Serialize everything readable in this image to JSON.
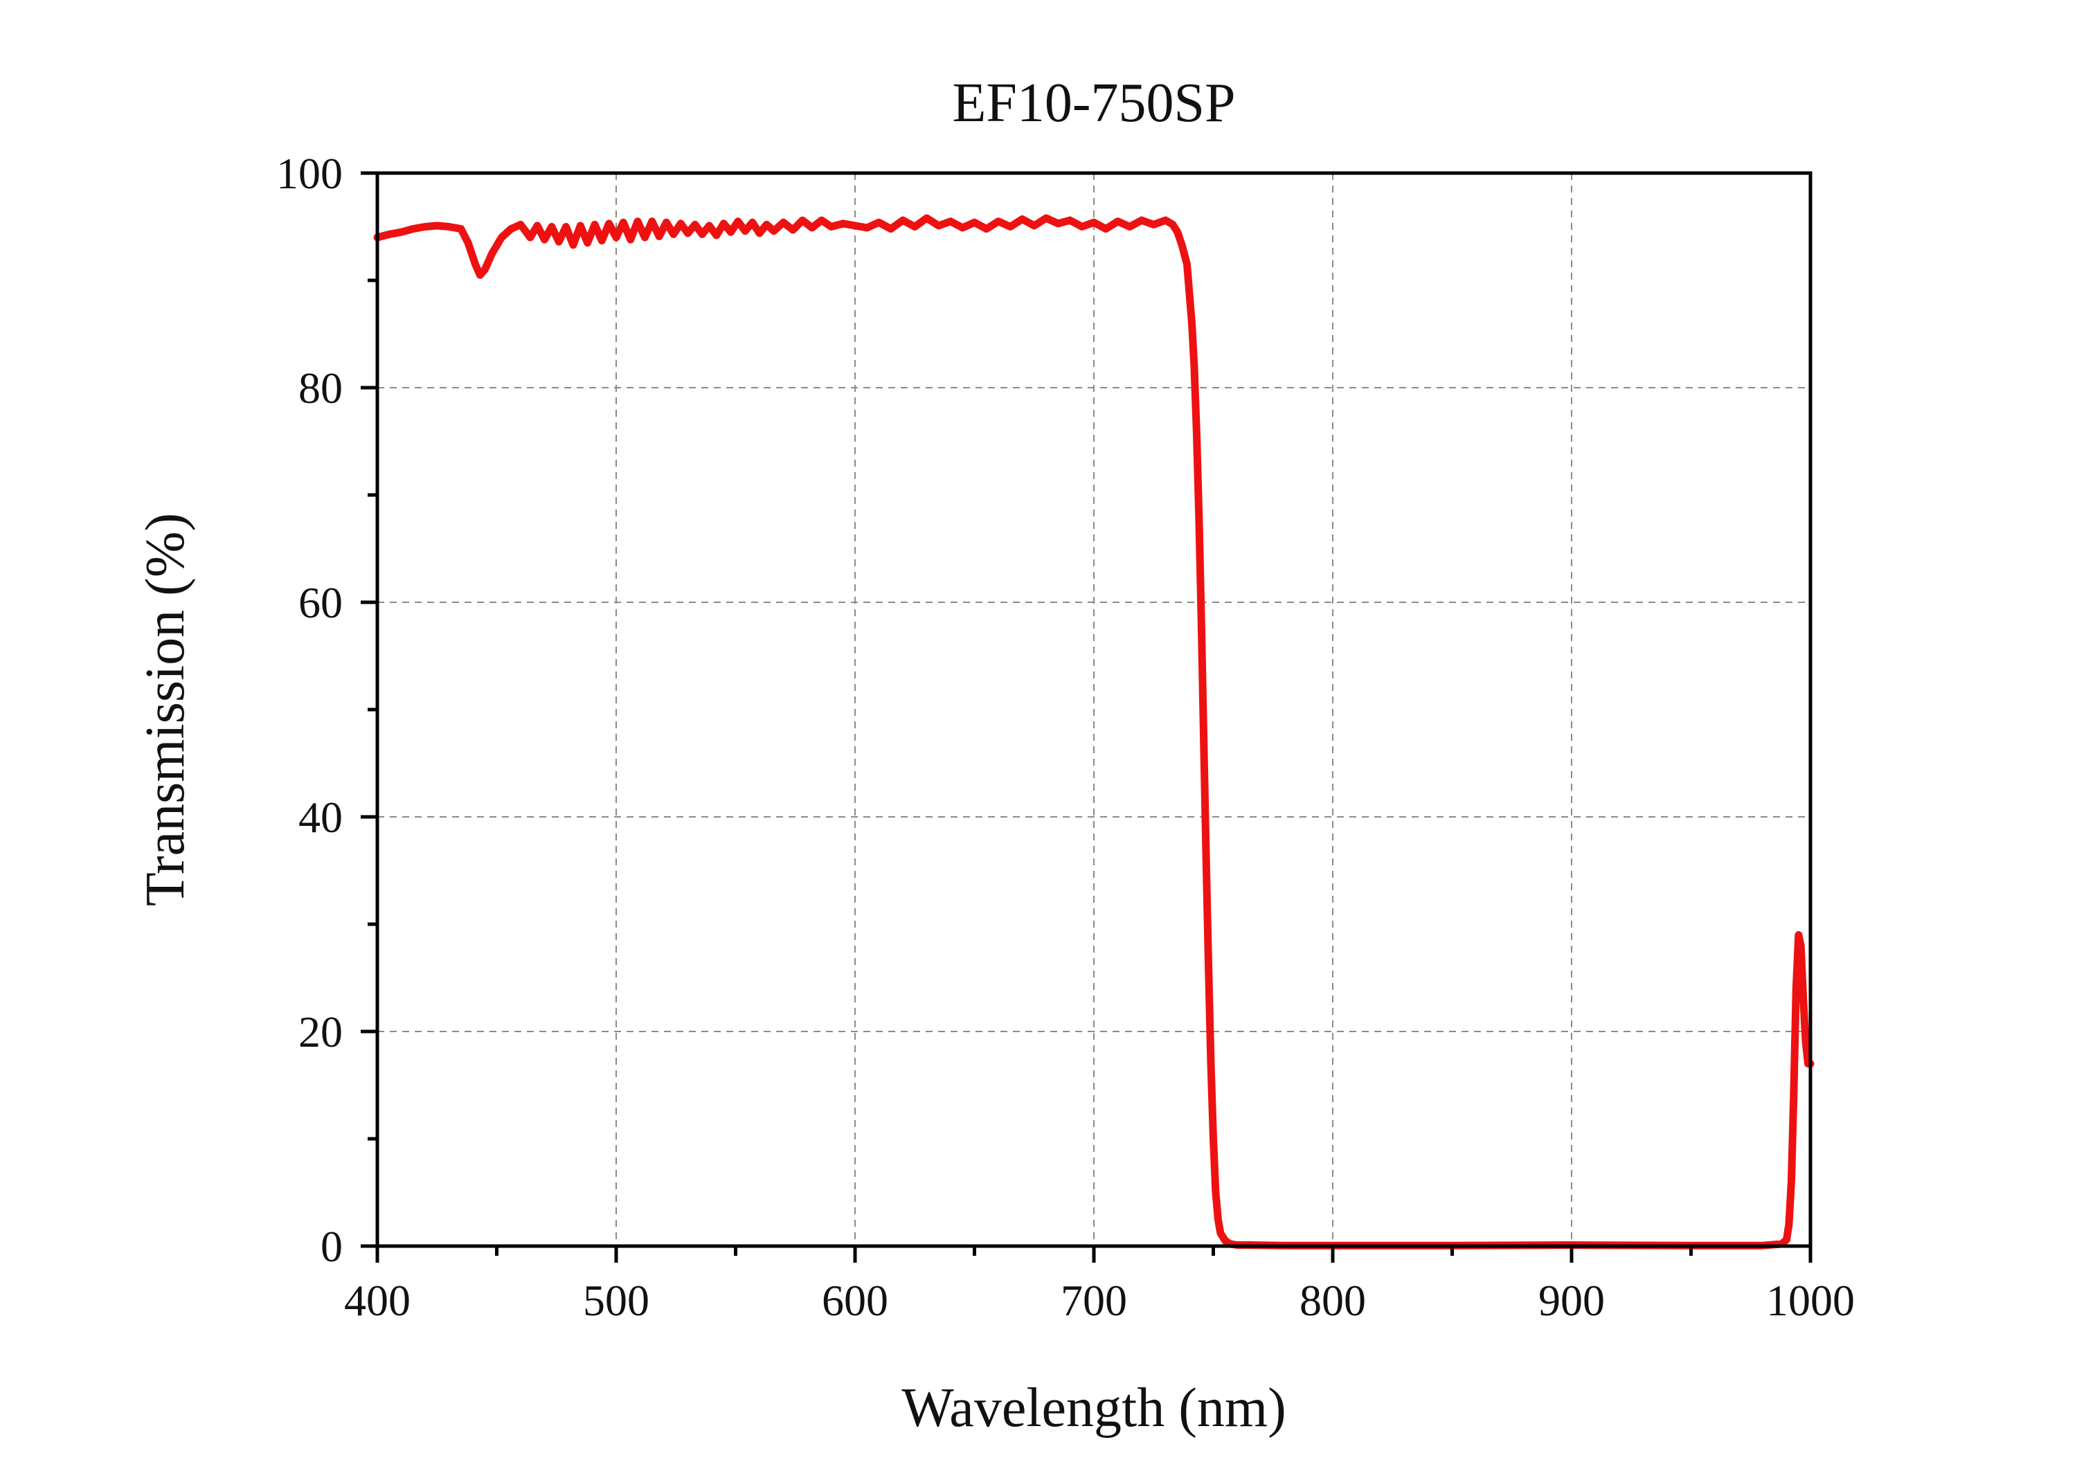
{
  "chart_data": {
    "type": "line",
    "title": "EF10-750SP",
    "xlabel": "Wavelength (nm)",
    "ylabel": "Transmission (%)",
    "xlim": [
      400,
      1000
    ],
    "ylim": [
      0,
      100
    ],
    "xticks": [
      400,
      500,
      600,
      700,
      800,
      900,
      1000
    ],
    "yticks": [
      0,
      20,
      40,
      60,
      80,
      100
    ],
    "xtick_labels": [
      "400",
      "500",
      "600",
      "700",
      "800",
      "900",
      "1000"
    ],
    "ytick_labels": [
      "0",
      "20",
      "40",
      "60",
      "80",
      "100"
    ],
    "grid": true,
    "legend": "none",
    "line_color": "#ee1111",
    "series": [
      {
        "x": [
          400,
          405,
          410,
          415,
          420,
          425,
          430,
          435,
          438,
          441,
          443,
          445,
          448,
          452,
          456,
          460,
          464,
          467,
          470,
          473,
          476,
          479,
          482,
          485,
          488,
          491,
          494,
          497,
          500,
          503,
          506,
          509,
          512,
          515,
          518,
          521,
          524,
          527,
          530,
          533,
          536,
          539,
          542,
          545,
          548,
          551,
          554,
          557,
          560,
          563,
          566,
          570,
          574,
          578,
          582,
          586,
          590,
          595,
          600,
          605,
          610,
          615,
          620,
          625,
          630,
          635,
          640,
          645,
          650,
          655,
          660,
          665,
          670,
          675,
          680,
          685,
          690,
          695,
          700,
          705,
          710,
          715,
          720,
          725,
          730,
          733,
          735,
          737,
          739,
          741,
          742,
          743,
          744,
          745,
          746,
          747,
          748,
          749,
          750,
          751,
          752,
          753,
          755,
          757,
          760,
          765,
          780,
          800,
          850,
          900,
          950,
          980,
          988,
          990,
          991,
          992,
          993,
          994,
          995,
          996,
          997,
          998,
          999,
          1000
        ],
        "y": [
          94.0,
          94.3,
          94.5,
          94.8,
          95.0,
          95.1,
          95.0,
          94.8,
          93.5,
          91.5,
          90.5,
          91.0,
          92.5,
          94.0,
          94.8,
          95.2,
          94.0,
          95.1,
          93.8,
          95.0,
          93.6,
          95.0,
          93.3,
          95.1,
          93.5,
          95.2,
          93.7,
          95.3,
          94.0,
          95.4,
          93.8,
          95.5,
          94.0,
          95.5,
          94.1,
          95.4,
          94.3,
          95.3,
          94.4,
          95.2,
          94.3,
          95.1,
          94.2,
          95.3,
          94.5,
          95.5,
          94.6,
          95.4,
          94.4,
          95.2,
          94.6,
          95.4,
          94.7,
          95.6,
          94.9,
          95.6,
          95.0,
          95.3,
          95.1,
          94.9,
          95.4,
          94.8,
          95.6,
          95.0,
          95.8,
          95.1,
          95.5,
          94.9,
          95.4,
          94.8,
          95.5,
          95.0,
          95.7,
          95.1,
          95.8,
          95.3,
          95.6,
          95.0,
          95.4,
          94.8,
          95.5,
          95.0,
          95.6,
          95.2,
          95.6,
          95.2,
          94.5,
          93.2,
          91.5,
          86,
          82,
          76,
          68,
          58,
          47,
          36,
          26,
          17,
          10,
          5,
          2.5,
          1.2,
          0.5,
          0.2,
          0.1,
          0.1,
          0.05,
          0.05,
          0.05,
          0.1,
          0.05,
          0.05,
          0.2,
          0.6,
          2,
          6,
          14,
          24,
          29,
          28,
          23,
          19,
          17,
          17
        ]
      }
    ]
  }
}
